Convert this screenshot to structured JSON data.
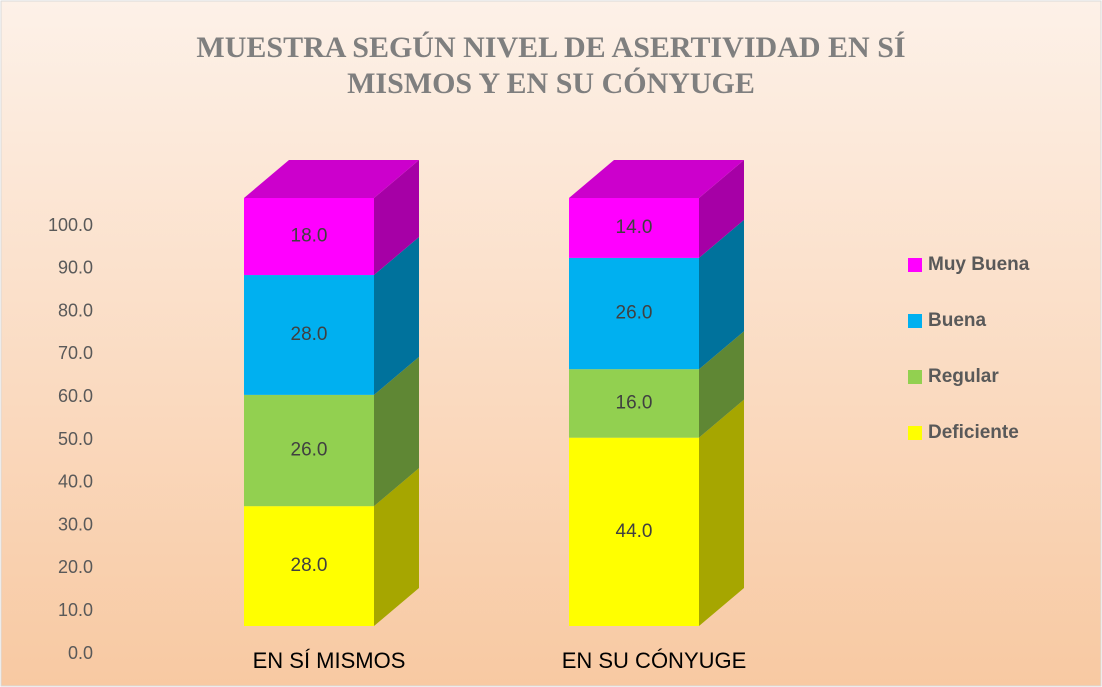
{
  "chart_data": {
    "type": "stacked_bar_3d",
    "title": [
      "MUESTRA SEGÚN NIVEL DE ASERTIVIDAD EN SÍ",
      "MISMOS Y EN SU CÓNYUGE"
    ],
    "categories": [
      "EN SÍ MISMOS",
      "EN SU CÓNYUGE"
    ],
    "series": [
      {
        "name": "Deficiente",
        "color": "#ffff00",
        "values": [
          28,
          44
        ],
        "value_labels": [
          "28.0",
          "44.0"
        ]
      },
      {
        "name": "Regular",
        "color": "#92d050",
        "values": [
          26,
          16
        ],
        "value_labels": [
          "26.0",
          "16.0"
        ]
      },
      {
        "name": "Buena",
        "color": "#00b0f0",
        "values": [
          28,
          26
        ],
        "value_labels": [
          "28.0",
          "26.0"
        ]
      },
      {
        "name": "Muy Buena",
        "color": "#ff00ff",
        "values": [
          18,
          14
        ],
        "value_labels": [
          "18.0",
          "14.0"
        ]
      }
    ],
    "ylim": [
      0,
      100
    ],
    "yticks": [
      {
        "value": 0,
        "label": "0.0"
      },
      {
        "value": 10,
        "label": "10.0"
      },
      {
        "value": 20,
        "label": "20.0"
      },
      {
        "value": 30,
        "label": "30.0"
      },
      {
        "value": 40,
        "label": "40.0"
      },
      {
        "value": 50,
        "label": "50.0"
      },
      {
        "value": 60,
        "label": "60.0"
      },
      {
        "value": 70,
        "label": "70.0"
      },
      {
        "value": 80,
        "label": "80.0"
      },
      {
        "value": 90,
        "label": "90.0"
      },
      {
        "value": 100,
        "label": "100.0"
      }
    ],
    "grid": false,
    "legend": "right"
  }
}
